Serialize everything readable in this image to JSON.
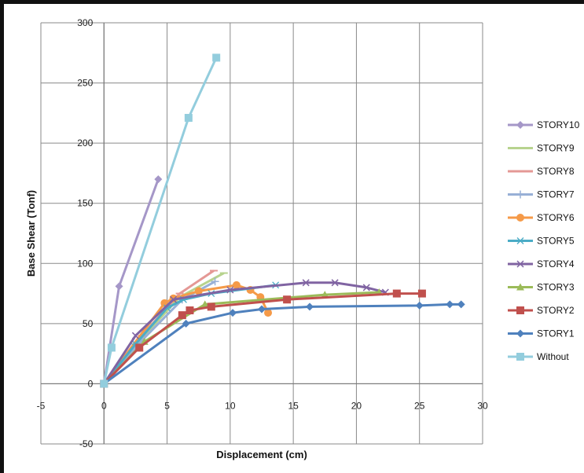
{
  "chart_data": {
    "type": "scatter",
    "title": "",
    "xlabel": "Displacement (cm)",
    "ylabel": "Base Shear (Tonf)",
    "xlim": [
      -5,
      30
    ],
    "ylim": [
      -50,
      300
    ],
    "x_ticks": [
      "-5",
      "0",
      "5",
      "10",
      "15",
      "20",
      "25",
      "30"
    ],
    "y_ticks": [
      "-50",
      "0",
      "50",
      "100",
      "150",
      "200",
      "250",
      "300"
    ],
    "grid": true,
    "legend_position": "right",
    "series": [
      {
        "name": "STORY10",
        "color": "#a597c8",
        "marker": "diamond",
        "x": [
          0,
          1.2,
          4.3
        ],
        "y": [
          0,
          81,
          170
        ]
      },
      {
        "name": "STORY9",
        "color": "#b7d38e",
        "marker": "dash",
        "x": [
          0,
          3,
          6,
          9.5
        ],
        "y": [
          0,
          38,
          72,
          92
        ]
      },
      {
        "name": "STORY8",
        "color": "#e49895",
        "marker": "dash",
        "x": [
          0,
          3,
          6,
          8.7
        ],
        "y": [
          0,
          40,
          75,
          94
        ]
      },
      {
        "name": "STORY7",
        "color": "#98b0d6",
        "marker": "plus",
        "x": [
          0,
          3,
          6.2,
          8.8
        ],
        "y": [
          0,
          36,
          70,
          85
        ]
      },
      {
        "name": "STORY6",
        "color": "#f59a48",
        "marker": "circle",
        "x": [
          0,
          4.8,
          5.5,
          7.5,
          10.5,
          11.6,
          12.4,
          13
        ],
        "y": [
          0,
          67,
          71,
          77,
          82,
          78,
          72,
          59
        ]
      },
      {
        "name": "STORY5",
        "color": "#4bacc6",
        "marker": "asterisk",
        "x": [
          0,
          2.5,
          5,
          6.3,
          8.5,
          13.6
        ],
        "y": [
          0,
          33,
          63,
          70,
          75,
          82
        ]
      },
      {
        "name": "STORY4",
        "color": "#8064a2",
        "marker": "x",
        "x": [
          0,
          2.5,
          5.5,
          10,
          16,
          18.3,
          20.8,
          22.3
        ],
        "y": [
          0,
          40,
          70,
          78,
          84,
          84,
          80,
          76
        ]
      },
      {
        "name": "STORY3",
        "color": "#9bbb59",
        "marker": "triangle",
        "x": [
          0,
          3.2,
          8,
          17.5,
          21.8
        ],
        "y": [
          0,
          35,
          66,
          74,
          76
        ]
      },
      {
        "name": "STORY2",
        "color": "#c0504d",
        "marker": "square",
        "x": [
          0,
          2.8,
          6.2,
          6.8,
          8.5,
          14.5,
          23.2,
          25.2
        ],
        "y": [
          0,
          30,
          57,
          61,
          64,
          70,
          75,
          75
        ]
      },
      {
        "name": "STORY1",
        "color": "#4f81bd",
        "marker": "diamond",
        "x": [
          0,
          6.5,
          10.2,
          12.5,
          16.3,
          25,
          27.4,
          28.3
        ],
        "y": [
          0,
          50,
          59,
          62,
          64,
          65,
          66,
          66
        ]
      },
      {
        "name": "Without",
        "color": "#93cddd",
        "marker": "square",
        "x": [
          0,
          0.6,
          6.7,
          8.9
        ],
        "y": [
          0,
          30,
          221,
          271
        ]
      }
    ]
  }
}
